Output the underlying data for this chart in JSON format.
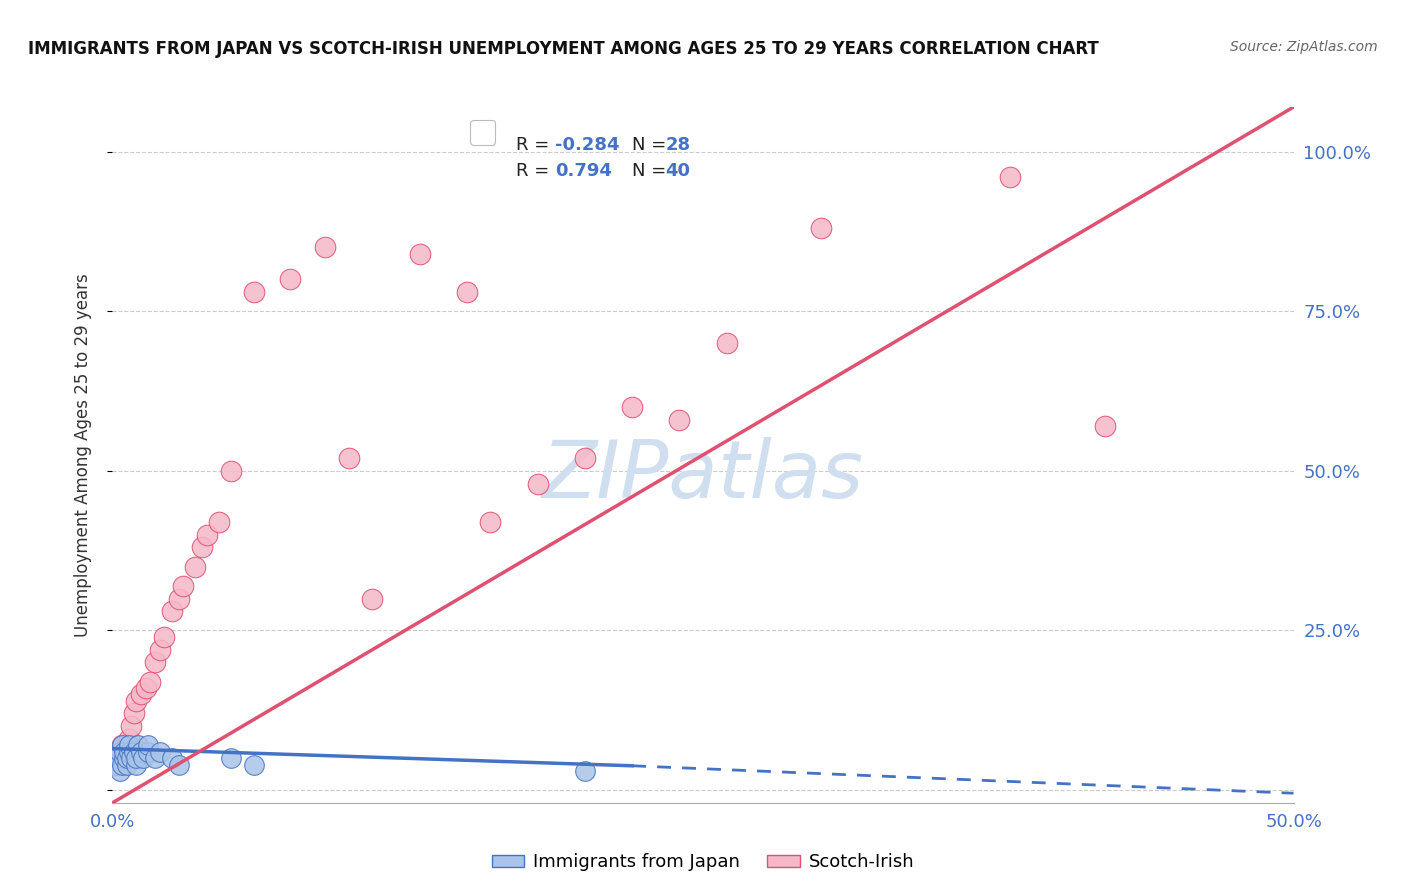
{
  "title": "IMMIGRANTS FROM JAPAN VS SCOTCH-IRISH UNEMPLOYMENT AMONG AGES 25 TO 29 YEARS CORRELATION CHART",
  "source": "Source: ZipAtlas.com",
  "ylabel": "Unemployment Among Ages 25 to 29 years",
  "xlim": [
    0.0,
    0.5
  ],
  "ylim": [
    -0.02,
    1.07
  ],
  "japan_R": -0.284,
  "japan_N": 28,
  "scotch_R": 0.794,
  "scotch_N": 40,
  "japan_color": "#a8c4e8",
  "scotch_color": "#f5b8c8",
  "japan_color_dark": "#4472c4",
  "scotch_color_dark": "#e05070",
  "watermark_color": "#d0dff0",
  "background_color": "#ffffff",
  "grid_color": "#cccccc",
  "japan_x": [
    0.001,
    0.002,
    0.003,
    0.003,
    0.004,
    0.004,
    0.005,
    0.005,
    0.006,
    0.006,
    0.007,
    0.007,
    0.008,
    0.009,
    0.01,
    0.01,
    0.011,
    0.012,
    0.013,
    0.015,
    0.015,
    0.018,
    0.02,
    0.025,
    0.028,
    0.05,
    0.06,
    0.2
  ],
  "japan_y": [
    0.04,
    0.05,
    0.03,
    0.06,
    0.04,
    0.07,
    0.05,
    0.06,
    0.04,
    0.05,
    0.06,
    0.07,
    0.05,
    0.06,
    0.04,
    0.05,
    0.07,
    0.06,
    0.05,
    0.06,
    0.07,
    0.05,
    0.06,
    0.05,
    0.04,
    0.05,
    0.04,
    0.03
  ],
  "scotch_x": [
    0.001,
    0.002,
    0.003,
    0.004,
    0.005,
    0.006,
    0.007,
    0.008,
    0.009,
    0.01,
    0.012,
    0.014,
    0.016,
    0.018,
    0.02,
    0.022,
    0.025,
    0.028,
    0.03,
    0.035,
    0.038,
    0.04,
    0.045,
    0.05,
    0.06,
    0.075,
    0.09,
    0.1,
    0.11,
    0.13,
    0.15,
    0.16,
    0.18,
    0.2,
    0.22,
    0.24,
    0.26,
    0.3,
    0.38,
    0.42
  ],
  "scotch_y": [
    0.04,
    0.05,
    0.06,
    0.07,
    0.05,
    0.06,
    0.08,
    0.1,
    0.12,
    0.14,
    0.15,
    0.16,
    0.17,
    0.2,
    0.22,
    0.24,
    0.28,
    0.3,
    0.32,
    0.35,
    0.38,
    0.4,
    0.42,
    0.5,
    0.78,
    0.8,
    0.85,
    0.52,
    0.3,
    0.84,
    0.78,
    0.42,
    0.48,
    0.52,
    0.6,
    0.58,
    0.7,
    0.88,
    0.96,
    0.57
  ]
}
